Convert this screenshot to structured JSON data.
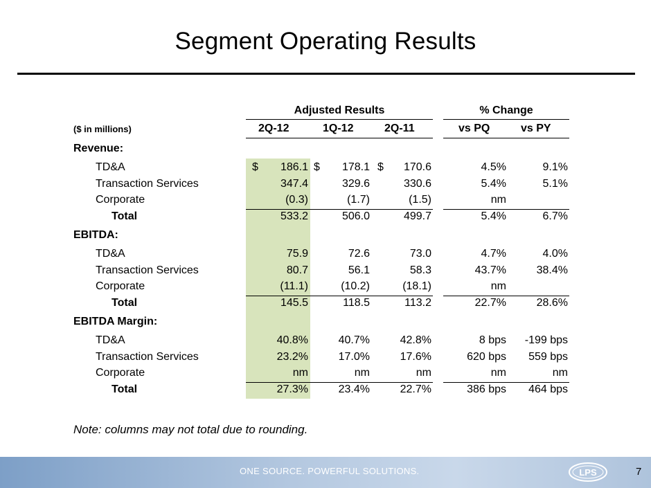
{
  "title": "Segment Operating Results",
  "units": "($ in millions)",
  "group_headers": {
    "adjusted": "Adjusted Results",
    "change": "% Change"
  },
  "col_headers": [
    "2Q-12",
    "1Q-12",
    "2Q-11",
    "vs PQ",
    "vs PY"
  ],
  "highlight_color": "#d8e4bc",
  "sections": [
    {
      "label": "Revenue:",
      "rows": [
        {
          "label": "TD&A",
          "dollar": "$",
          "c1": "186.1",
          "c2": "178.1",
          "c3": "170.6",
          "pq": "4.5%",
          "py": "9.1%"
        },
        {
          "label": "Transaction Services",
          "c1": "347.4",
          "c2": "329.6",
          "c3": "330.6",
          "pq": "5.4%",
          "py": "5.1%"
        },
        {
          "label": "Corporate",
          "c1": "(0.3)",
          "c2": "(1.7)",
          "c3": "(1.5)",
          "pq": "nm",
          "py": ""
        },
        {
          "label": "Total",
          "c1": "533.2",
          "c2": "506.0",
          "c3": "499.7",
          "pq": "5.4%",
          "py": "6.7%"
        }
      ]
    },
    {
      "label": "EBITDA:",
      "rows": [
        {
          "label": "TD&A",
          "c1": "75.9",
          "c2": "72.6",
          "c3": "73.0",
          "pq": "4.7%",
          "py": "4.0%"
        },
        {
          "label": "Transaction Services",
          "c1": "80.7",
          "c2": "56.1",
          "c3": "58.3",
          "pq": "43.7%",
          "py": "38.4%"
        },
        {
          "label": "Corporate",
          "c1": "(11.1)",
          "c2": "(10.2)",
          "c3": "(18.1)",
          "pq": "nm",
          "py": ""
        },
        {
          "label": "Total",
          "c1": "145.5",
          "c2": "118.5",
          "c3": "113.2",
          "pq": "22.7%",
          "py": "28.6%"
        }
      ]
    },
    {
      "label": "EBITDA Margin:",
      "rows": [
        {
          "label": "TD&A",
          "c1": "40.8%",
          "c2": "40.7%",
          "c3": "42.8%",
          "pq": "8 bps",
          "py": "-199 bps"
        },
        {
          "label": "Transaction Services",
          "c1": "23.2%",
          "c2": "17.0%",
          "c3": "17.6%",
          "pq": "620 bps",
          "py": "559 bps"
        },
        {
          "label": "Corporate",
          "c1": "nm",
          "c2": "nm",
          "c3": "nm",
          "pq": "nm",
          "py": "nm"
        },
        {
          "label": "Total",
          "c1": "27.3%",
          "c2": "23.4%",
          "c3": "22.7%",
          "pq": "386 bps",
          "py": "464 bps"
        }
      ]
    }
  ],
  "note": "Note: columns may not total due to rounding.",
  "footer": {
    "tagline": "ONE SOURCE. POWERFUL SOLUTIONS.",
    "logo_text": "LPS",
    "page_number": "7"
  }
}
